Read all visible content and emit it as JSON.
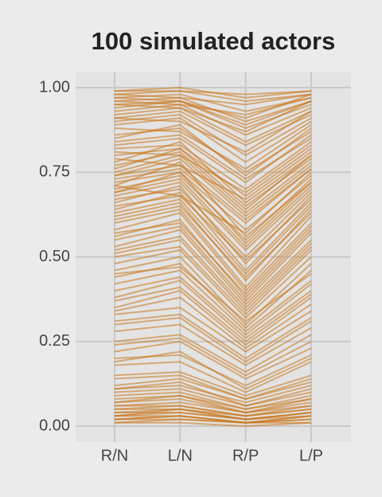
{
  "chart_data": {
    "type": "parallel",
    "title": "100 simulated actors",
    "categories": [
      "R/N",
      "L/N",
      "R/P",
      "L/P"
    ],
    "color": "#c8771b",
    "ylim": [
      -0.047,
      1.047
    ],
    "yticks": [
      {
        "value": 0,
        "label": "0.00"
      },
      {
        "value": 0.25,
        "label": "0.25"
      },
      {
        "value": 0.5,
        "label": "0.50"
      },
      {
        "value": 0.75,
        "label": "0.75"
      },
      {
        "value": 1,
        "label": "1.00"
      }
    ],
    "grid": true,
    "lines": [
      [
        0.99,
        0.99,
        0.98,
        0.99
      ],
      [
        0.98,
        0.97,
        0.95,
        0.98
      ],
      [
        0.97,
        0.98,
        0.93,
        0.97
      ],
      [
        0.96,
        0.97,
        0.9,
        0.96
      ],
      [
        0.95,
        0.96,
        0.88,
        0.95
      ],
      [
        0.93,
        0.95,
        0.86,
        0.94
      ],
      [
        0.92,
        0.94,
        0.84,
        0.93
      ],
      [
        0.91,
        0.93,
        0.83,
        0.92
      ],
      [
        0.9,
        0.92,
        0.8,
        0.91
      ],
      [
        0.99,
        1.0,
        0.97,
        0.99
      ],
      [
        0.98,
        0.99,
        0.96,
        0.98
      ],
      [
        0.96,
        0.95,
        0.92,
        0.97
      ],
      [
        0.94,
        0.96,
        0.89,
        0.96
      ],
      [
        0.89,
        0.91,
        0.78,
        0.9
      ],
      [
        0.86,
        0.88,
        0.75,
        0.87
      ],
      [
        0.84,
        0.86,
        0.73,
        0.85
      ],
      [
        0.82,
        0.83,
        0.7,
        0.84
      ],
      [
        0.8,
        0.82,
        0.68,
        0.82
      ],
      [
        0.78,
        0.84,
        0.66,
        0.8
      ],
      [
        0.76,
        0.82,
        0.65,
        0.79
      ],
      [
        0.75,
        0.8,
        0.63,
        0.78
      ],
      [
        0.74,
        0.79,
        0.62,
        0.77
      ],
      [
        0.73,
        0.76,
        0.6,
        0.76
      ],
      [
        0.72,
        0.75,
        0.58,
        0.74
      ],
      [
        0.71,
        0.78,
        0.56,
        0.72
      ],
      [
        0.7,
        0.74,
        0.55,
        0.73
      ],
      [
        0.69,
        0.73,
        0.53,
        0.71
      ],
      [
        0.68,
        0.72,
        0.52,
        0.7
      ],
      [
        0.67,
        0.7,
        0.5,
        0.69
      ],
      [
        0.66,
        0.71,
        0.48,
        0.68
      ],
      [
        0.64,
        0.69,
        0.46,
        0.66
      ],
      [
        0.63,
        0.67,
        0.45,
        0.65
      ],
      [
        0.62,
        0.66,
        0.43,
        0.64
      ],
      [
        0.6,
        0.64,
        0.41,
        0.62
      ],
      [
        0.58,
        0.63,
        0.4,
        0.6
      ],
      [
        0.56,
        0.61,
        0.38,
        0.58
      ],
      [
        0.55,
        0.59,
        0.37,
        0.57
      ],
      [
        0.53,
        0.58,
        0.36,
        0.55
      ],
      [
        0.52,
        0.56,
        0.35,
        0.54
      ],
      [
        0.5,
        0.53,
        0.33,
        0.52
      ],
      [
        0.48,
        0.52,
        0.32,
        0.5
      ],
      [
        0.46,
        0.5,
        0.3,
        0.48
      ],
      [
        0.44,
        0.48,
        0.29,
        0.46
      ],
      [
        0.42,
        0.46,
        0.28,
        0.43
      ],
      [
        0.4,
        0.44,
        0.27,
        0.42
      ],
      [
        0.38,
        0.43,
        0.26,
        0.4
      ],
      [
        0.35,
        0.4,
        0.24,
        0.38
      ],
      [
        0.33,
        0.35,
        0.22,
        0.34
      ],
      [
        0.31,
        0.33,
        0.2,
        0.32
      ],
      [
        0.28,
        0.3,
        0.18,
        0.29
      ],
      [
        0.25,
        0.27,
        0.16,
        0.27
      ],
      [
        0.22,
        0.25,
        0.14,
        0.23
      ],
      [
        0.2,
        0.21,
        0.12,
        0.21
      ],
      [
        0.18,
        0.19,
        0.1,
        0.19
      ],
      [
        0.15,
        0.16,
        0.09,
        0.15
      ],
      [
        0.12,
        0.14,
        0.08,
        0.13
      ],
      [
        0.11,
        0.12,
        0.07,
        0.12
      ],
      [
        0.1,
        0.11,
        0.06,
        0.1
      ],
      [
        0.09,
        0.1,
        0.05,
        0.09
      ],
      [
        0.08,
        0.09,
        0.05,
        0.08
      ],
      [
        0.07,
        0.08,
        0.04,
        0.07
      ],
      [
        0.06,
        0.07,
        0.04,
        0.06
      ],
      [
        0.05,
        0.06,
        0.03,
        0.05
      ],
      [
        0.05,
        0.05,
        0.03,
        0.05
      ],
      [
        0.04,
        0.05,
        0.02,
        0.04
      ],
      [
        0.04,
        0.04,
        0.02,
        0.04
      ],
      [
        0.03,
        0.04,
        0.02,
        0.03
      ],
      [
        0.03,
        0.03,
        0.01,
        0.03
      ],
      [
        0.02,
        0.03,
        0.01,
        0.02
      ],
      [
        0.02,
        0.02,
        0.01,
        0.02
      ],
      [
        0.01,
        0.02,
        0.01,
        0.01
      ],
      [
        0.01,
        0.01,
        0.0,
        0.01
      ],
      [
        0.97,
        0.96,
        0.91,
        0.98
      ],
      [
        0.95,
        0.94,
        0.87,
        0.96
      ],
      [
        0.91,
        0.9,
        0.81,
        0.93
      ],
      [
        0.88,
        0.87,
        0.76,
        0.89
      ],
      [
        0.85,
        0.89,
        0.74,
        0.88
      ],
      [
        0.83,
        0.85,
        0.72,
        0.86
      ],
      [
        0.81,
        0.8,
        0.69,
        0.83
      ],
      [
        0.79,
        0.77,
        0.67,
        0.81
      ],
      [
        0.77,
        0.81,
        0.64,
        0.8
      ],
      [
        0.74,
        0.77,
        0.61,
        0.76
      ],
      [
        0.71,
        0.68,
        0.57,
        0.75
      ],
      [
        0.69,
        0.75,
        0.54,
        0.72
      ],
      [
        0.65,
        0.68,
        0.49,
        0.67
      ],
      [
        0.61,
        0.65,
        0.44,
        0.63
      ],
      [
        0.57,
        0.6,
        0.39,
        0.59
      ],
      [
        0.51,
        0.55,
        0.34,
        0.53
      ],
      [
        0.45,
        0.47,
        0.31,
        0.45
      ],
      [
        0.37,
        0.41,
        0.25,
        0.39
      ],
      [
        0.34,
        0.38,
        0.23,
        0.36
      ],
      [
        0.3,
        0.32,
        0.19,
        0.31
      ],
      [
        0.24,
        0.26,
        0.15,
        0.25
      ],
      [
        0.19,
        0.22,
        0.11,
        0.2
      ],
      [
        0.14,
        0.15,
        0.08,
        0.14
      ],
      [
        0.11,
        0.13,
        0.06,
        0.11
      ],
      [
        0.07,
        0.09,
        0.04,
        0.08
      ],
      [
        0.06,
        0.06,
        0.03,
        0.06
      ],
      [
        0.03,
        0.05,
        0.02,
        0.04
      ],
      [
        0.02,
        0.03,
        0.01,
        0.03
      ]
    ]
  }
}
